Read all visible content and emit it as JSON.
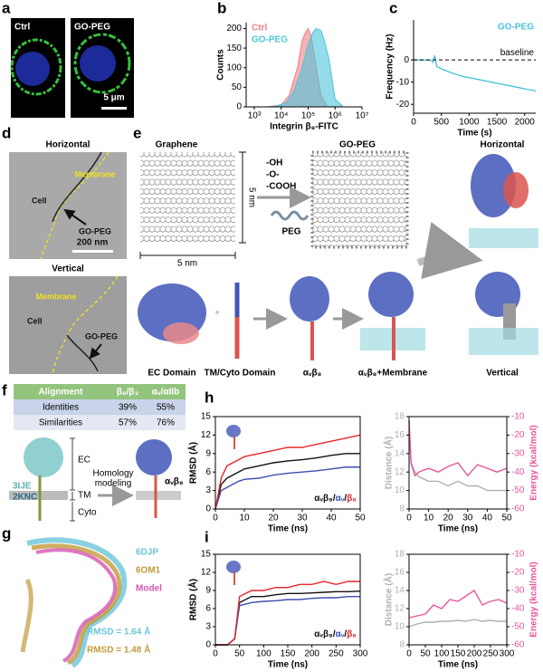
{
  "panels": {
    "a": {
      "label": "a",
      "images": [
        "Ctrl",
        "GO-PEG"
      ],
      "scale_bar": "5 μm"
    },
    "d": {
      "label": "d",
      "top": {
        "title": "Horizontal",
        "membrane": "Membrane",
        "cell": "Cell",
        "arrow": "GO-PEG",
        "scale_bar": "200 nm"
      },
      "bottom": {
        "title": "Vertical",
        "membrane": "Membrane",
        "cell": "Cell",
        "arrow": "GO-PEG"
      }
    },
    "e": {
      "label": "e",
      "graphene": "Graphene",
      "width": "5 nm",
      "height": "5 nm",
      "groups": [
        "-OH",
        "-O-",
        "-COOH"
      ],
      "peg": "PEG",
      "go_peg": "GO-PEG",
      "horizontal": "Horizontal",
      "vertical": "Vertical",
      "ec_domain": "EC Domain",
      "tm_domain": "TM/Cyto Domain",
      "integrin": "αᵥβ₈",
      "integrin_membrane": "αᵥβ₈+Membrane"
    },
    "f": {
      "label": "f",
      "table": {
        "header": [
          "Alignment",
          "β₈/β₃",
          "αᵥ/αIIb"
        ],
        "rows": [
          [
            "Identities",
            "39%",
            "55%"
          ],
          [
            "Similarities",
            "57%",
            "76%"
          ]
        ]
      },
      "diagram": {
        "ec": "EC",
        "tm": "TM",
        "cyto": "Cyto",
        "pdb1": "3IJE",
        "pdb2": "2KNC",
        "step": [
          "Homology",
          "modeling"
        ],
        "result": "αᵥβ₈"
      }
    },
    "g": {
      "label": "g",
      "structures": [
        {
          "name": "6DJP",
          "color": "#6cc5d8"
        },
        {
          "name": "6OM1",
          "color": "#c39a3a"
        },
        {
          "name": "Model",
          "color": "#d455b4"
        }
      ],
      "rmsd": [
        {
          "label": "RMSD = 1.64 Å",
          "color": "#6cc5d8"
        },
        {
          "label": "RMSD = 1.48 Å",
          "color": "#c39a3a"
        }
      ]
    }
  },
  "chart_data": [
    {
      "type": "area",
      "panel_label": "b",
      "xlabel": "Integrin β₈-FITC",
      "ylabel": "Counts",
      "xscale": "log",
      "xlim": [
        500,
        10000000
      ],
      "xticks": [
        {
          "value": 1000,
          "label": "10³"
        },
        {
          "value": 10000,
          "label": "10⁴"
        },
        {
          "value": 100000,
          "label": "10⁵"
        },
        {
          "value": 1000000,
          "label": "10⁶"
        },
        {
          "value": 10000000,
          "label": "10⁷"
        }
      ],
      "ylim": [
        0,
        215
      ],
      "yticks": [
        0,
        50,
        100,
        150,
        200
      ],
      "legend": "top-left",
      "series": [
        {
          "name": "Ctrl",
          "color": "#f07f86",
          "x": [
            3000,
            10000,
            20000,
            40000,
            60000,
            80000,
            100000,
            130000,
            200000,
            300000,
            500000
          ],
          "values": [
            0,
            5,
            30,
            100,
            170,
            190,
            200,
            180,
            100,
            30,
            2
          ]
        },
        {
          "name": "GO-PEG",
          "color": "#4cc4dc",
          "x": [
            5000,
            15000,
            30000,
            60000,
            100000,
            150000,
            200000,
            300000,
            400000,
            600000,
            1000000,
            2000000
          ],
          "values": [
            0,
            10,
            40,
            100,
            160,
            190,
            200,
            195,
            170,
            120,
            20,
            0
          ]
        }
      ]
    },
    {
      "type": "line",
      "panel_label": "c",
      "xlabel": "Time (s)",
      "ylabel": "Frequency (Hz)",
      "xlim": [
        0,
        2200
      ],
      "xticks": [
        0,
        500,
        1000,
        1500,
        2000
      ],
      "ylim": [
        -24,
        18
      ],
      "yticks": [
        -20,
        -10,
        0
      ],
      "legend": "top-right",
      "baseline": {
        "value": 0,
        "label": "baseline"
      },
      "x": [
        0,
        300,
        350,
        380,
        420,
        500,
        700,
        900,
        1100,
        1300,
        1500,
        1700,
        1900,
        2100,
        2200
      ],
      "series": [
        {
          "name": "GO-PEG",
          "color": "#4cc4dc",
          "values": [
            0,
            0,
            -1,
            2,
            -3,
            -4,
            -6,
            -7.5,
            -8.5,
            -9.5,
            -10.5,
            -11.5,
            -12.5,
            -13.5,
            -14
          ]
        }
      ]
    },
    {
      "type": "line",
      "panel_label": "h",
      "xlabel": "Time (ns)",
      "ylabel": "RMSD (Å)",
      "xlim": [
        0,
        50
      ],
      "xticks": [
        0,
        10,
        20,
        30,
        40,
        50
      ],
      "ylim": [
        0,
        15
      ],
      "yticks": [
        0,
        3,
        6,
        9,
        12,
        15
      ],
      "legend": "bottom-right",
      "legend_separator": "/",
      "x": [
        0,
        2,
        4,
        6,
        8,
        10,
        15,
        20,
        25,
        30,
        35,
        40,
        45,
        50
      ],
      "series": [
        {
          "name": "αᵥβ₈",
          "color": "#111111",
          "values": [
            0,
            4,
            5,
            5.5,
            6,
            6.5,
            7,
            7.5,
            7.8,
            8,
            8.3,
            8.7,
            9,
            9
          ]
        },
        {
          "name": "αᵥ",
          "color": "#3a4fb0",
          "values": [
            0,
            3,
            3.5,
            4,
            4.5,
            4.8,
            5,
            5.5,
            5.8,
            6,
            6.2,
            6.5,
            6.8,
            6.8
          ]
        },
        {
          "name": "β₈",
          "color": "#e8262a",
          "values": [
            0,
            5,
            7,
            7.5,
            8,
            8.5,
            9,
            9.5,
            10,
            10,
            10.5,
            11,
            11.5,
            12
          ]
        }
      ]
    },
    {
      "type": "line",
      "xlabel": "Time (ns)",
      "ylabel": "Distance (Å)",
      "y2label": "Energy (kcal/mol)",
      "xlim": [
        0,
        50
      ],
      "xticks": [
        0,
        10,
        20,
        30,
        40,
        50
      ],
      "ylim": [
        8,
        18
      ],
      "yticks": [
        8,
        10,
        12,
        14,
        16,
        18
      ],
      "y2lim": [
        -60,
        -10
      ],
      "y2ticks": [
        -60,
        -50,
        -40,
        -30,
        -20,
        -10
      ],
      "x": [
        0,
        1,
        3,
        5,
        10,
        15,
        20,
        25,
        30,
        35,
        40,
        45,
        50
      ],
      "series": [
        {
          "color": "#b0b0b0",
          "values": [
            17.5,
            13,
            12,
            11.5,
            11,
            11,
            10.5,
            11,
            10.5,
            10.5,
            10,
            10,
            10
          ]
        },
        {
          "color": "#e8559c",
          "axis": "y2",
          "values": [
            -12,
            -35,
            -42,
            -40,
            -38,
            -40,
            -37,
            -35,
            -42,
            -36,
            -38,
            -40,
            -38
          ]
        }
      ]
    },
    {
      "type": "line",
      "panel_label": "i",
      "xlabel": "Time (ns)",
      "ylabel": "RMSD (Å)",
      "xlim": [
        0,
        300
      ],
      "xticks": [
        0,
        50,
        100,
        150,
        200,
        250,
        300
      ],
      "ylim": [
        0,
        15
      ],
      "yticks": [
        0,
        3,
        6,
        9,
        12,
        15
      ],
      "legend": "bottom-right",
      "legend_separator": "/",
      "x": [
        0,
        25,
        40,
        50,
        75,
        100,
        125,
        150,
        175,
        200,
        225,
        250,
        275,
        300
      ],
      "series": [
        {
          "name": "αᵥβ₈",
          "color": "#111111",
          "values": [
            0,
            0,
            1,
            7,
            8,
            8,
            8.3,
            8.5,
            8.5,
            8.6,
            8.7,
            8.8,
            8.8,
            8.9
          ]
        },
        {
          "name": "αᵥ",
          "color": "#3a4fb0",
          "values": [
            0,
            0,
            1,
            6.5,
            7,
            7.2,
            7.3,
            7.5,
            7.5,
            7.7,
            7.8,
            7.8,
            8,
            8
          ]
        },
        {
          "name": "β₈",
          "color": "#e8262a",
          "values": [
            0,
            0,
            1,
            8,
            9,
            9,
            9.5,
            9.5,
            10,
            10,
            10.5,
            10,
            10.5,
            10.5
          ]
        }
      ]
    },
    {
      "type": "line",
      "xlabel": "Time (ns)",
      "ylabel": "Distance (Å)",
      "y2label": "Energy (kcal/mol)",
      "xlim": [
        0,
        300
      ],
      "xticks": [
        0,
        50,
        100,
        150,
        200,
        250,
        300
      ],
      "ylim": [
        8,
        18
      ],
      "yticks": [
        8,
        10,
        12,
        14,
        16,
        18
      ],
      "y2lim": [
        -60,
        -10
      ],
      "y2ticks": [
        -60,
        -50,
        -40,
        -30,
        -20,
        -10
      ],
      "x": [
        0,
        25,
        50,
        75,
        100,
        125,
        150,
        175,
        200,
        225,
        250,
        275,
        300
      ],
      "series": [
        {
          "color": "#b0b0b0",
          "values": [
            10,
            10.3,
            10.5,
            10.5,
            10.6,
            10.6,
            10.7,
            10.6,
            10.8,
            10.6,
            10.7,
            10.6,
            10.6
          ]
        },
        {
          "color": "#e8559c",
          "axis": "y2",
          "values": [
            -45,
            -44,
            -43,
            -38,
            -40,
            -35,
            -36,
            -33,
            -30,
            -38,
            -36,
            -35,
            -37
          ]
        }
      ]
    }
  ]
}
